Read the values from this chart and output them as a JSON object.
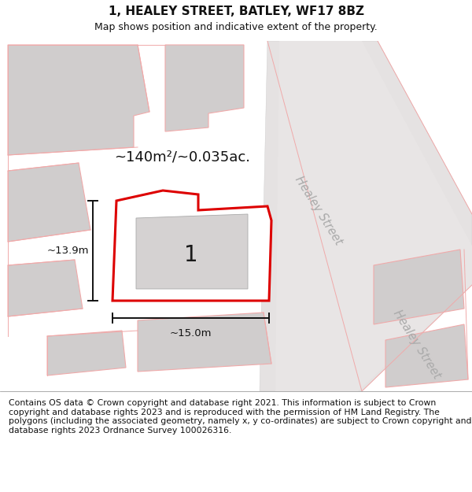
{
  "title": "1, HEALEY STREET, BATLEY, WF17 8BZ",
  "subtitle": "Map shows position and indicative extent of the property.",
  "footer": "Contains OS data © Crown copyright and database right 2021. This information is subject to Crown copyright and database rights 2023 and is reproduced with the permission of HM Land Registry. The polygons (including the associated geometry, namely x, y co-ordinates) are subject to Crown copyright and database rights 2023 Ordnance Survey 100026316.",
  "map_bg": "#eeecec",
  "plot_bg": "#ffffff",
  "red_color": "#dd0000",
  "light_red": "#f0aaaa",
  "gray_building": "#d0cdcd",
  "area_label": "~140m²/~0.035ac.",
  "number_label": "1",
  "dim_h": "~13.9m",
  "dim_w": "~15.0m",
  "street_label_1": "Healey Street",
  "street_label_2": "Healey Street",
  "title_fontsize": 11,
  "subtitle_fontsize": 9,
  "footer_fontsize": 7.8
}
